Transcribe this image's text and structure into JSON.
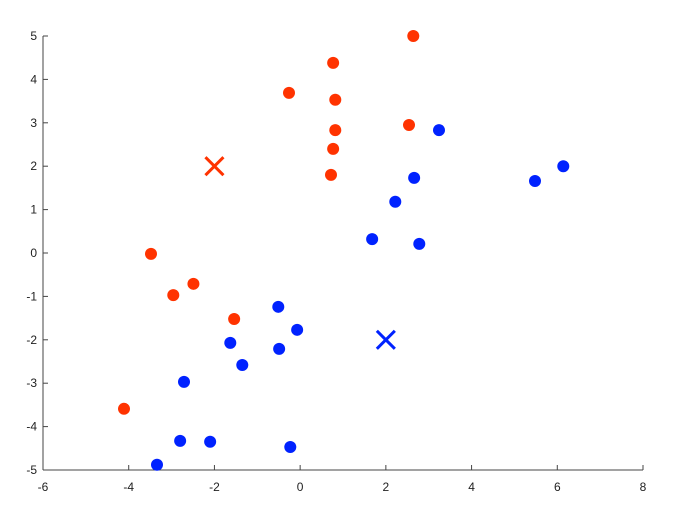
{
  "chart_data": {
    "type": "scatter",
    "title": "",
    "xlabel": "",
    "ylabel": "",
    "xlim": [
      -6,
      8
    ],
    "ylim": [
      -5,
      5
    ],
    "xticks": [
      "-6",
      "-4",
      "-2",
      "0",
      "2",
      "4",
      "6",
      "8"
    ],
    "yticks": [
      "-5",
      "-4",
      "-3",
      "-2",
      "-1",
      "0",
      "1",
      "2",
      "3",
      "4",
      "5"
    ],
    "grid": false,
    "legend": "none",
    "series": [
      {
        "color": "#ff3300",
        "marker": "circle",
        "points": [
          [
            2.64,
            5.0
          ],
          [
            0.77,
            4.38
          ],
          [
            -0.26,
            3.69
          ],
          [
            0.82,
            3.53
          ],
          [
            0.82,
            2.83
          ],
          [
            2.54,
            2.95
          ],
          [
            0.77,
            2.4
          ],
          [
            0.72,
            1.8
          ],
          [
            -3.48,
            -0.02
          ],
          [
            -2.49,
            -0.71
          ],
          [
            -2.96,
            -0.97
          ],
          [
            -1.54,
            -1.52
          ],
          [
            -4.11,
            -3.59
          ]
        ]
      },
      {
        "color": "#0022ff",
        "marker": "circle",
        "points": [
          [
            3.24,
            2.83
          ],
          [
            2.66,
            1.73
          ],
          [
            6.14,
            2.0
          ],
          [
            5.48,
            1.66
          ],
          [
            2.22,
            1.18
          ],
          [
            1.68,
            0.32
          ],
          [
            2.78,
            0.21
          ],
          [
            -0.51,
            -1.24
          ],
          [
            -0.07,
            -1.77
          ],
          [
            -1.63,
            -2.07
          ],
          [
            -0.49,
            -2.21
          ],
          [
            -1.35,
            -2.58
          ],
          [
            -2.71,
            -2.97
          ],
          [
            -2.8,
            -4.33
          ],
          [
            -2.1,
            -4.35
          ],
          [
            -0.23,
            -4.47
          ],
          [
            -3.34,
            -4.88
          ]
        ]
      }
    ],
    "centroids": [
      {
        "color": "#ff3300",
        "marker": "x",
        "point": [
          -2,
          2
        ]
      },
      {
        "color": "#0022ff",
        "marker": "x",
        "point": [
          2,
          -2
        ]
      }
    ]
  }
}
